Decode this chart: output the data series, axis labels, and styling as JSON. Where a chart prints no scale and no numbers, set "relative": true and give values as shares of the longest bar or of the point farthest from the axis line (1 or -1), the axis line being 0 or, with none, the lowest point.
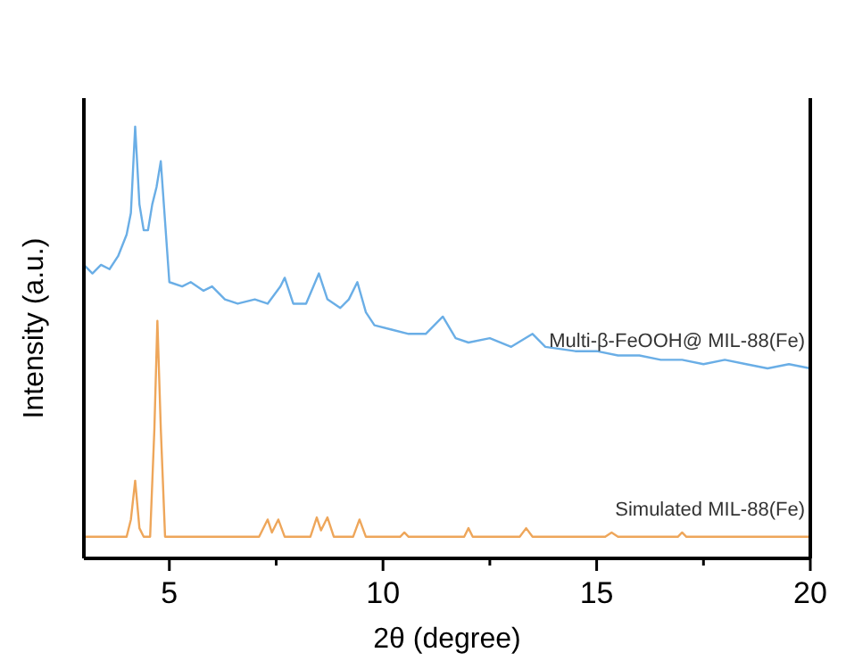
{
  "chart_data": {
    "type": "line",
    "relative": true,
    "xlabel": "2θ (degree)",
    "ylabel": "Intensity (a.u.)",
    "xlim": [
      3,
      20
    ],
    "xticks": [
      5,
      {
        "value": 7.5,
        "label": null
      },
      10,
      {
        "value": 12.5,
        "label": null
      },
      15,
      {
        "value": 17.5,
        "label": null
      },
      20
    ],
    "tick_labels": "x",
    "grid": false,
    "marker": "none",
    "line_style": "solid",
    "series": [
      {
        "name": "Multi-β-FeOOH@ MIL-88(Fe)",
        "color": "#6aaee6",
        "x": [
          3.0,
          3.2,
          3.4,
          3.6,
          3.8,
          4.0,
          4.1,
          4.2,
          4.3,
          4.4,
          4.5,
          4.6,
          4.7,
          4.8,
          4.9,
          5.0,
          5.3,
          5.5,
          5.8,
          6.0,
          6.3,
          6.6,
          7.0,
          7.3,
          7.6,
          7.7,
          7.9,
          8.2,
          8.5,
          8.7,
          9.0,
          9.2,
          9.4,
          9.6,
          9.8,
          10.2,
          10.6,
          11.0,
          11.4,
          11.7,
          12.0,
          12.5,
          13.0,
          13.5,
          13.8,
          14.5,
          15.0,
          15.5,
          16.0,
          16.5,
          17.0,
          17.5,
          18.0,
          18.5,
          19.0,
          19.5,
          20.0
        ],
        "values": [
          0.68,
          0.66,
          0.68,
          0.67,
          0.7,
          0.75,
          0.8,
          1.0,
          0.82,
          0.76,
          0.76,
          0.82,
          0.86,
          0.92,
          0.78,
          0.64,
          0.63,
          0.64,
          0.62,
          0.63,
          0.6,
          0.59,
          0.6,
          0.59,
          0.63,
          0.65,
          0.59,
          0.59,
          0.66,
          0.6,
          0.58,
          0.6,
          0.64,
          0.57,
          0.54,
          0.53,
          0.52,
          0.52,
          0.56,
          0.51,
          0.5,
          0.51,
          0.49,
          0.52,
          0.49,
          0.48,
          0.48,
          0.47,
          0.47,
          0.46,
          0.46,
          0.45,
          0.46,
          0.45,
          0.44,
          0.45,
          0.44
        ]
      },
      {
        "name": "Simulated MIL-88(Fe)",
        "color": "#eea65a",
        "x": [
          3,
          4.0,
          4.1,
          4.2,
          4.3,
          4.4,
          4.55,
          4.65,
          4.72,
          4.8,
          4.9,
          7.1,
          7.3,
          7.4,
          7.55,
          7.7,
          8.3,
          8.45,
          8.55,
          8.7,
          8.85,
          9.3,
          9.45,
          9.6,
          10.4,
          10.5,
          10.6,
          11.9,
          12.0,
          12.1,
          13.2,
          13.35,
          13.5,
          15.2,
          15.35,
          15.5,
          16.9,
          17.0,
          17.1,
          20
        ],
        "values": [
          0.05,
          0.05,
          0.09,
          0.18,
          0.07,
          0.05,
          0.05,
          0.3,
          0.55,
          0.3,
          0.05,
          0.05,
          0.09,
          0.06,
          0.09,
          0.05,
          0.05,
          0.095,
          0.065,
          0.095,
          0.05,
          0.05,
          0.09,
          0.05,
          0.05,
          0.06,
          0.05,
          0.05,
          0.07,
          0.05,
          0.05,
          0.07,
          0.05,
          0.05,
          0.06,
          0.05,
          0.05,
          0.06,
          0.05,
          0.05
        ]
      }
    ]
  }
}
